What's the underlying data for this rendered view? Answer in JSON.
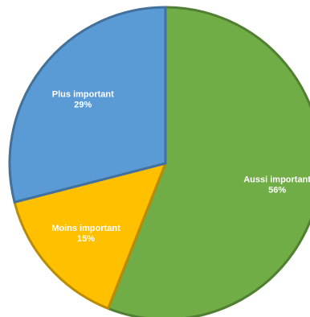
{
  "chart_data": {
    "type": "pie",
    "start_category": "Aussi important",
    "categories": [
      "Aussi important",
      "Moins important",
      "Plus important"
    ],
    "values": [
      56,
      15,
      29
    ],
    "labels": [
      "56%",
      "15%",
      "29%"
    ],
    "colors": [
      "#70AD47",
      "#FFC000",
      "#5B9BD5"
    ],
    "edge_colors": [
      "#507E32",
      "#BC8C00",
      "#41719C"
    ],
    "title": "",
    "legend": "none"
  }
}
